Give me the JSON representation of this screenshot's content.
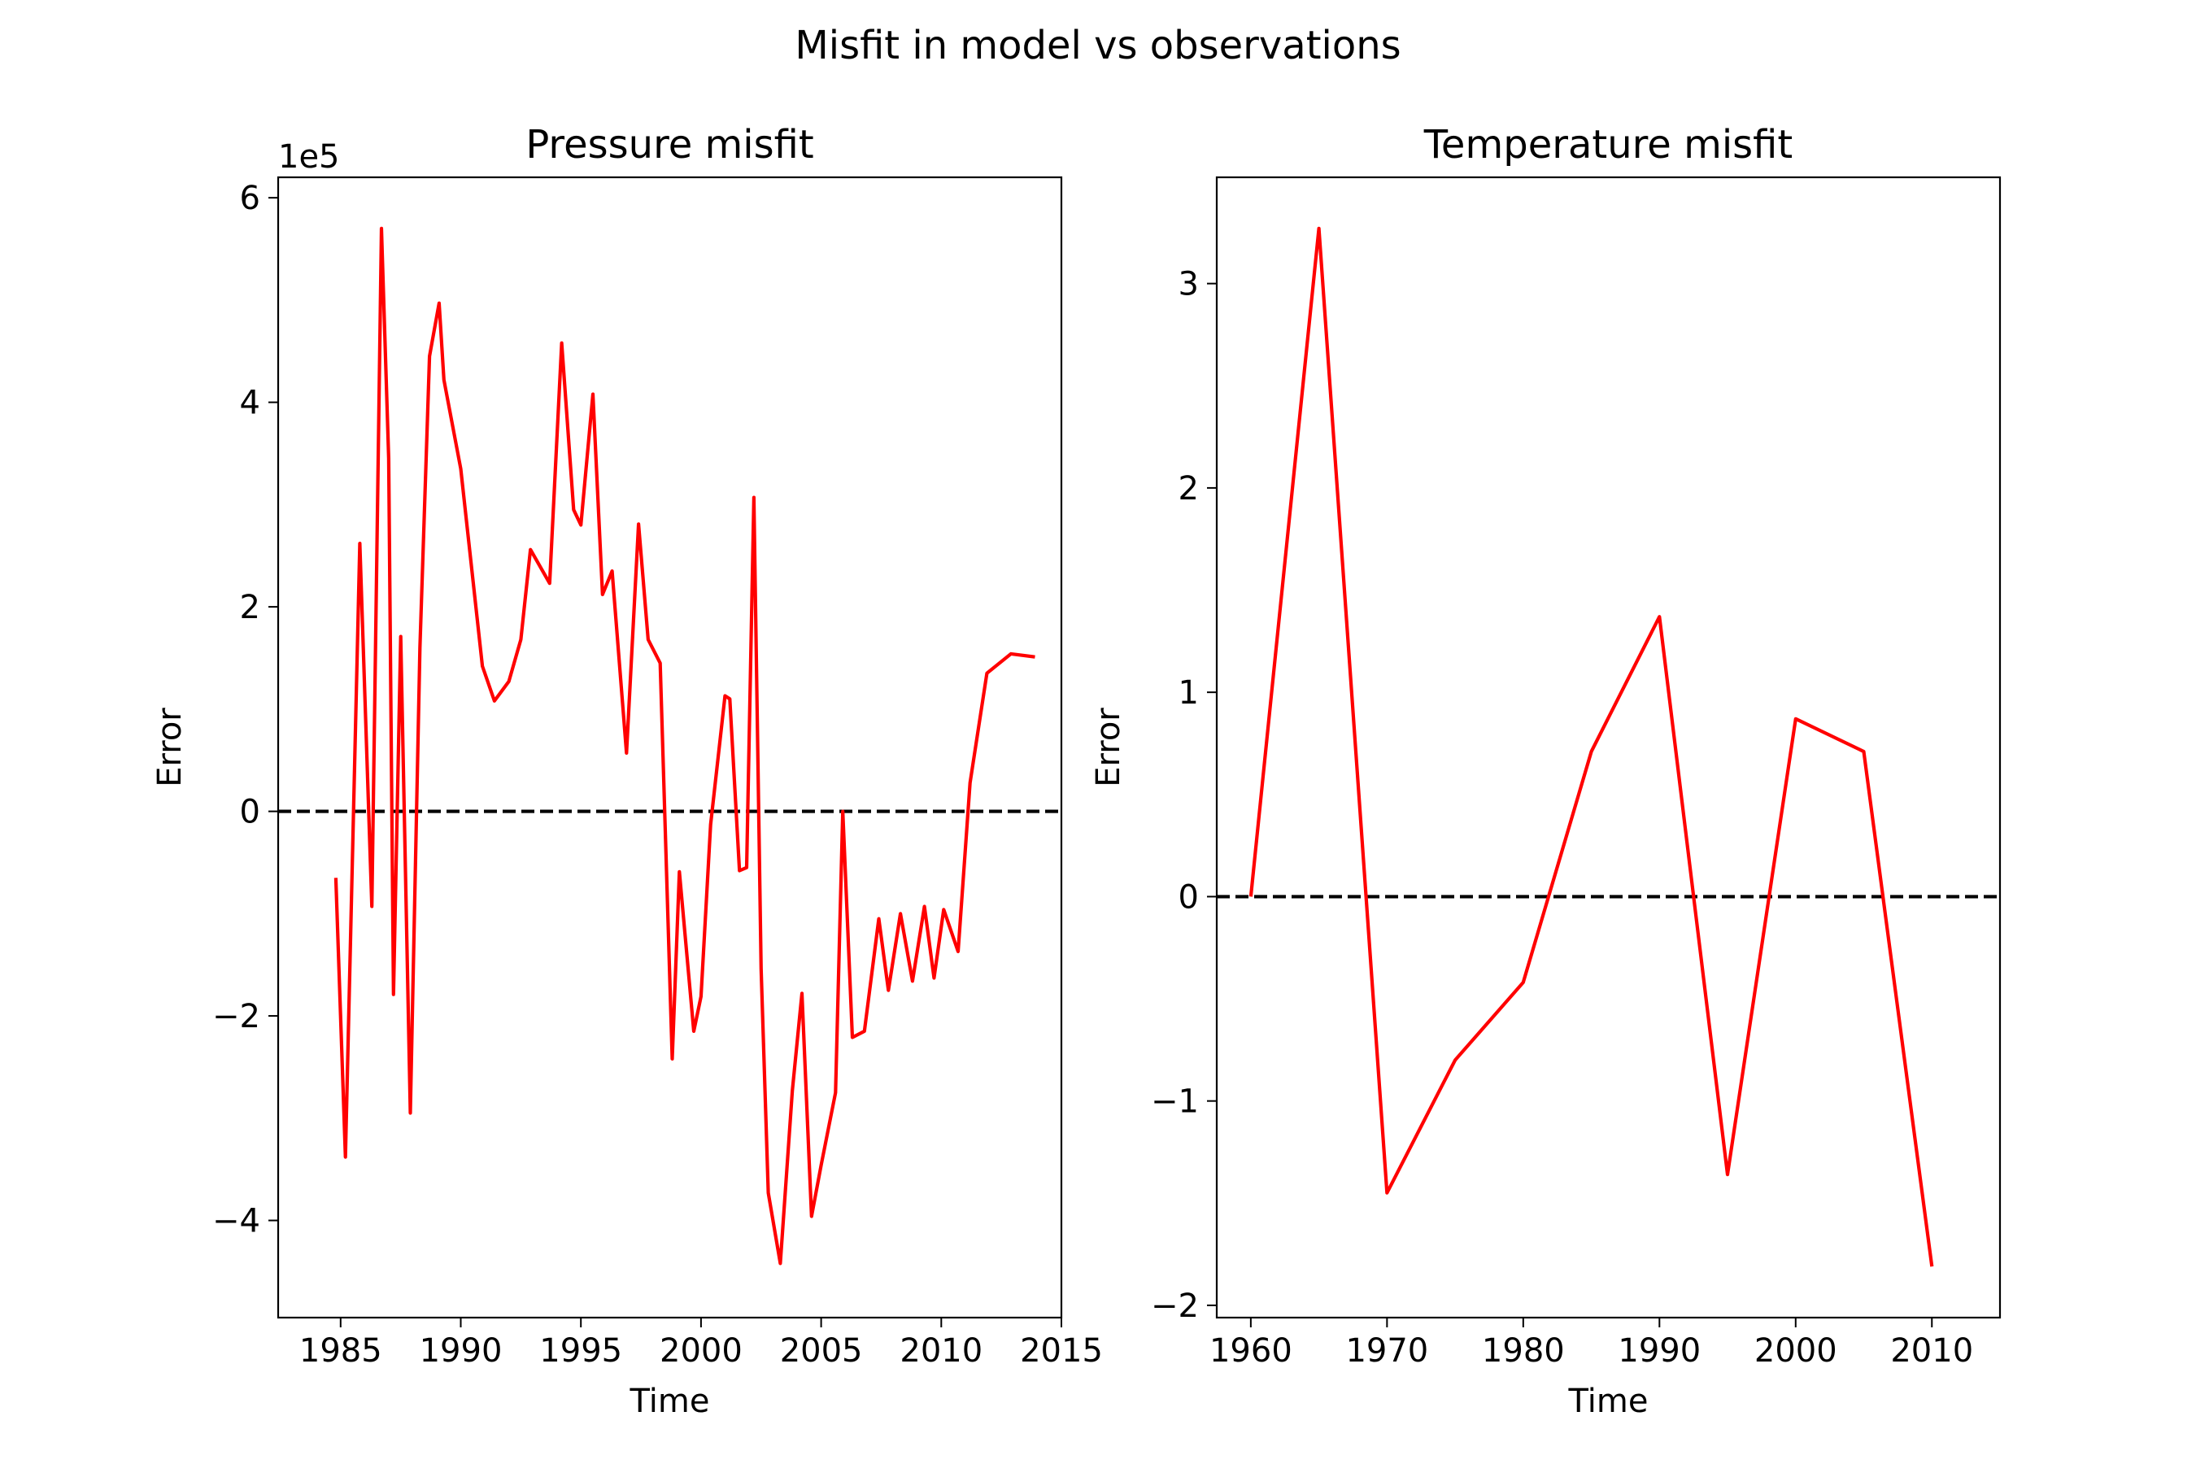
{
  "figure": {
    "suptitle": "Misfit in model vs observations"
  },
  "chart_data": [
    {
      "type": "line",
      "title": "Pressure misfit",
      "xlabel": "Time",
      "ylabel": "Error",
      "y_offset_label": "1e5",
      "xlim": [
        1982.4,
        2015.0
      ],
      "ylim": [
        -4.95,
        6.2
      ],
      "x_ticks": [
        1985,
        1990,
        1995,
        2000,
        2005,
        2010,
        2015
      ],
      "x_tick_labels": [
        "1985",
        "1990",
        "1995",
        "2000",
        "2005",
        "2010",
        "2015"
      ],
      "y_ticks": [
        -4,
        -2,
        0,
        2,
        4,
        6
      ],
      "y_tick_labels": [
        "−4",
        "−2",
        "0",
        "2",
        "4",
        "6"
      ],
      "grid": false,
      "legend": "none",
      "reference_line": {
        "y": 0,
        "style": "dashed",
        "color": "#000000"
      },
      "series": [
        {
          "color": "#ff0000",
          "x": [
            1984.8,
            1985.2,
            1985.8,
            1986.3,
            1986.7,
            1987.0,
            1987.2,
            1987.5,
            1987.9,
            1988.3,
            1988.7,
            1989.1,
            1989.3,
            1990.0,
            1990.9,
            1991.4,
            1992.0,
            1992.5,
            1992.9,
            1993.7,
            1994.2,
            1994.7,
            1995.0,
            1995.5,
            1995.9,
            1996.3,
            1996.9,
            1997.4,
            1997.8,
            1998.3,
            1998.8,
            1999.1,
            1999.7,
            2000.0,
            2000.4,
            2001.0,
            2001.2,
            2001.6,
            2001.9,
            2002.2,
            2002.5,
            2002.8,
            2003.3,
            2003.8,
            2004.2,
            2004.6,
            2005.0,
            2005.6,
            2005.9,
            2006.3,
            2006.8,
            2007.4,
            2007.8,
            2008.3,
            2008.8,
            2009.3,
            2009.7,
            2010.1,
            2010.7,
            2011.2,
            2011.9,
            2012.9,
            2013.9
          ],
          "values": [
            -0.65,
            -3.38,
            2.62,
            -0.93,
            5.7,
            3.45,
            -1.79,
            1.71,
            -2.95,
            1.6,
            4.45,
            4.97,
            4.22,
            3.35,
            1.42,
            1.08,
            1.27,
            1.68,
            2.56,
            2.23,
            4.58,
            2.95,
            2.8,
            4.08,
            2.12,
            2.35,
            0.57,
            2.81,
            1.68,
            1.45,
            -2.42,
            -0.59,
            -2.15,
            -1.81,
            -0.13,
            1.13,
            1.1,
            -0.58,
            -0.55,
            3.07,
            -1.54,
            -3.73,
            -4.42,
            -2.73,
            -1.78,
            -3.96,
            -3.46,
            -2.75,
            0.0,
            -2.21,
            -2.15,
            -1.05,
            -1.75,
            -1.0,
            -1.66,
            -0.93,
            -1.63,
            -0.96,
            -1.37,
            0.28,
            1.35,
            1.54,
            1.51
          ]
        }
      ]
    },
    {
      "type": "line",
      "title": "Temperature misfit",
      "xlabel": "Time",
      "ylabel": "Error",
      "xlim": [
        1957.5,
        2015.0
      ],
      "ylim": [
        -2.06,
        3.52
      ],
      "x_ticks": [
        1960,
        1970,
        1980,
        1990,
        2000,
        2010
      ],
      "x_tick_labels": [
        "1960",
        "1970",
        "1980",
        "1990",
        "2000",
        "2010"
      ],
      "y_ticks": [
        -2,
        -1,
        0,
        1,
        2,
        3
      ],
      "y_tick_labels": [
        "−2",
        "−1",
        "0",
        "1",
        "2",
        "3"
      ],
      "grid": false,
      "legend": "none",
      "reference_line": {
        "y": 0,
        "style": "dashed",
        "color": "#000000"
      },
      "series": [
        {
          "color": "#ff0000",
          "x": [
            1960,
            1965,
            1970,
            1975,
            1980,
            1985,
            1990,
            1995,
            2000,
            2005,
            2010
          ],
          "values": [
            0.0,
            3.27,
            -1.45,
            -0.8,
            -0.42,
            0.71,
            1.37,
            -1.36,
            0.87,
            0.71,
            -1.81
          ]
        }
      ]
    }
  ]
}
